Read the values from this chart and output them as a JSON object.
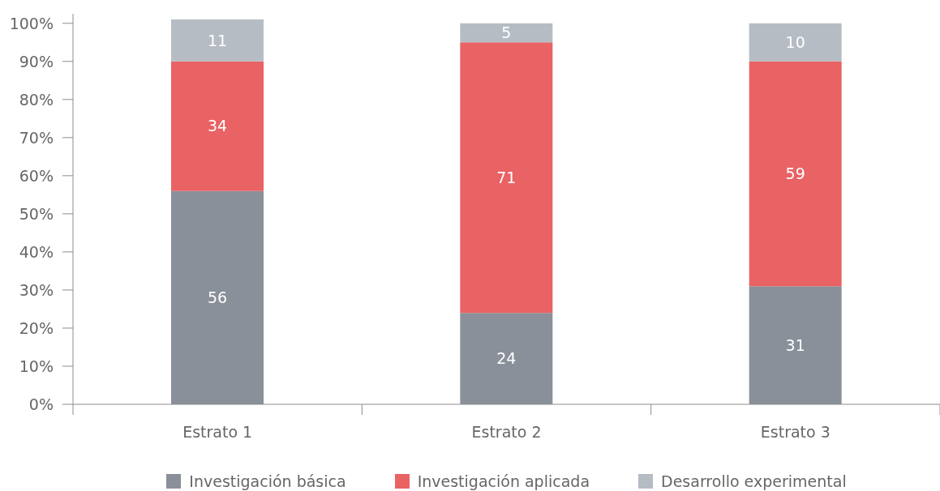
{
  "chart_data": {
    "type": "bar",
    "stacked": true,
    "categories": [
      "Estrato 1",
      "Estrato 2",
      "Estrato 3"
    ],
    "series": [
      {
        "name": "Investigación básica",
        "color": "#8a9099",
        "values": [
          56,
          24,
          31
        ]
      },
      {
        "name": "Investigación aplicada",
        "color": "#e96264",
        "values": [
          34,
          71,
          59
        ]
      },
      {
        "name": "Desarrollo experimental",
        "color": "#b6bcc4",
        "values": [
          11,
          5,
          10
        ]
      }
    ],
    "ylim": [
      0,
      102.5
    ],
    "yticks": [
      {
        "value": 0,
        "label": "0%"
      },
      {
        "value": 10,
        "label": "10%"
      },
      {
        "value": 20,
        "label": "20%"
      },
      {
        "value": 30,
        "label": "30%"
      },
      {
        "value": 40,
        "label": "40%"
      },
      {
        "value": 50,
        "label": "50%"
      },
      {
        "value": 60,
        "label": "60%"
      },
      {
        "value": 70,
        "label": "70%"
      },
      {
        "value": 80,
        "label": "80%"
      },
      {
        "value": 90,
        "label": "90%"
      },
      {
        "value": 100,
        "label": "100%"
      }
    ],
    "data_labels": true,
    "legend": "bottom"
  }
}
